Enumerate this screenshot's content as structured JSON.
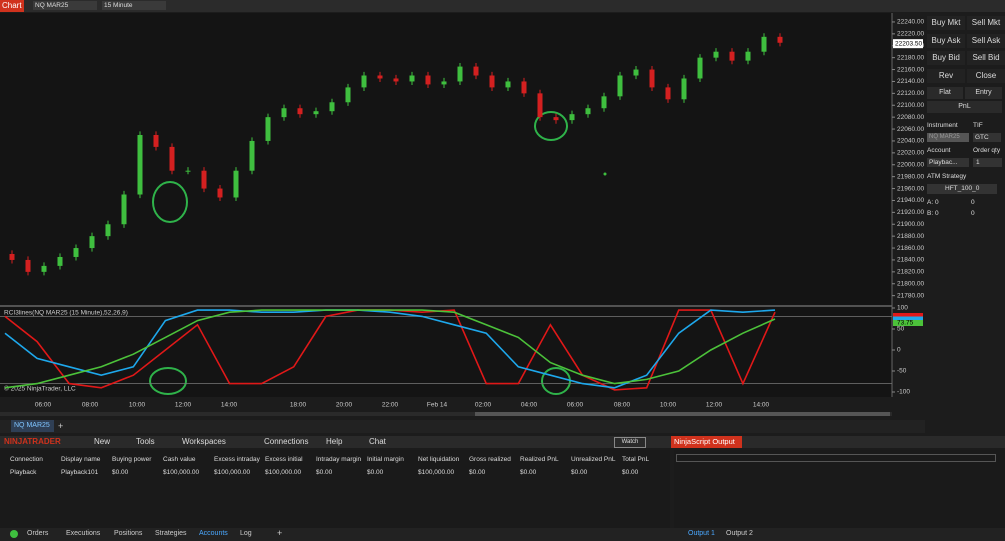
{
  "toolbar": {
    "title": "Chart",
    "instrument": "NQ MAR25",
    "interval": "15 Minute"
  },
  "chart_data": {
    "type": "candlestick",
    "open": [
      21850,
      21840,
      21820,
      21830,
      21845,
      21860,
      21880,
      21900,
      21950,
      22050,
      22030,
      21990,
      21990,
      21960,
      21945,
      21990,
      22040,
      22080,
      22095,
      22085,
      22090,
      22105,
      22130,
      22150,
      22145,
      22140,
      22150,
      22135,
      22140,
      22165,
      22150,
      22130,
      22140,
      22120,
      22080,
      22075,
      22085,
      22095,
      22115,
      22150,
      22160,
      22130,
      22110,
      22145,
      22180,
      22190,
      22175,
      22190,
      22215
    ],
    "high": [
      21856,
      21846,
      21836,
      21851,
      21866,
      21886,
      21906,
      21956,
      22056,
      22056,
      22036,
      21996,
      21996,
      21966,
      21996,
      22046,
      22086,
      22101,
      22101,
      22096,
      22111,
      22136,
      22156,
      22156,
      22151,
      22156,
      22156,
      22146,
      22171,
      22171,
      22156,
      22146,
      22146,
      22126,
      22086,
      22091,
      22101,
      22121,
      22156,
      22166,
      22166,
      22136,
      22151,
      22186,
      22196,
      22196,
      22196,
      22221,
      22221
    ],
    "low": [
      21834,
      21814,
      21814,
      21824,
      21839,
      21854,
      21874,
      21894,
      21944,
      22024,
      21984,
      21984,
      21954,
      21939,
      21939,
      21984,
      22034,
      22074,
      22079,
      22079,
      22084,
      22099,
      22124,
      22139,
      22134,
      22134,
      22129,
      22129,
      22134,
      22144,
      22124,
      22124,
      22114,
      22074,
      22069,
      22069,
      22079,
      22089,
      22109,
      22144,
      22124,
      22104,
      22104,
      22139,
      22174,
      22169,
      22169,
      22184,
      22199
    ],
    "close": [
      21840,
      21820,
      21830,
      21845,
      21860,
      21880,
      21900,
      21950,
      22050,
      22030,
      21990,
      21990,
      21960,
      21945,
      21990,
      22040,
      22080,
      22095,
      22085,
      22090,
      22105,
      22130,
      22150,
      22145,
      22140,
      22150,
      22135,
      22140,
      22165,
      22150,
      22130,
      22140,
      22120,
      22080,
      22075,
      22085,
      22095,
      22115,
      22150,
      22160,
      22130,
      22110,
      22145,
      22180,
      22190,
      22175,
      22190,
      22215,
      22205
    ],
    "up_color": "#3fbf3f",
    "down_color": "#d42020",
    "ylim": [
      21770,
      22250
    ],
    "yticks": [
      {
        "value": 22240,
        "label": "22240.00"
      },
      {
        "value": 22220,
        "label": "22220.00"
      },
      {
        "value": 22200,
        "label": "22200.00"
      },
      {
        "value": 22180,
        "label": "22180.00"
      },
      {
        "value": 22160,
        "label": "22160.00"
      },
      {
        "value": 22140,
        "label": "22140.00"
      },
      {
        "value": 22120,
        "label": "22120.00"
      },
      {
        "value": 22100,
        "label": "22100.00"
      },
      {
        "value": 22080,
        "label": "22080.00"
      },
      {
        "value": 22060,
        "label": "22060.00"
      },
      {
        "value": 22040,
        "label": "22040.00"
      },
      {
        "value": 22020,
        "label": "22020.00"
      },
      {
        "value": 22000,
        "label": "22000.00"
      },
      {
        "value": 21980,
        "label": "21980.00"
      },
      {
        "value": 21960,
        "label": "21960.00"
      },
      {
        "value": 21940,
        "label": "21940.00"
      },
      {
        "value": 21920,
        "label": "21920.00"
      },
      {
        "value": 21900,
        "label": "21900.00"
      },
      {
        "value": 21880,
        "label": "21880.00"
      },
      {
        "value": 21860,
        "label": "21860.00"
      },
      {
        "value": 21840,
        "label": "21840.00"
      },
      {
        "value": 21820,
        "label": "21820.00"
      },
      {
        "value": 21800,
        "label": "21800.00"
      },
      {
        "value": 21780,
        "label": "21780.00"
      }
    ],
    "last_price": {
      "value": 22203.5,
      "label": "22203.50"
    },
    "xlabels": [
      "06:00",
      "08:00",
      "10:00",
      "12:00",
      "14:00",
      "18:00",
      "20:00",
      "22:00",
      "Feb 14",
      "02:00",
      "04:00",
      "06:00",
      "08:00",
      "10:00",
      "12:00",
      "14:00"
    ],
    "copyright": "© 2025 NinjaTrader, LLC"
  },
  "indicator": {
    "type": "line",
    "title": "RCI3lines(NQ MAR25 (15 Minute),52,26,9)",
    "ylim": [
      -100,
      100
    ],
    "yticks": [
      100,
      50,
      0,
      -50,
      -100
    ],
    "levels": [
      80,
      -80
    ],
    "series": [
      {
        "color": "#e01818",
        "values": [
          80,
          20,
          -80,
          -90,
          -60,
          0,
          60,
          -80,
          -80,
          -40,
          80,
          95,
          95,
          90,
          95,
          -80,
          -80,
          60,
          -60,
          -95,
          -90,
          95,
          95,
          -80,
          90
        ]
      },
      {
        "color": "#1ea8ec",
        "values": [
          40,
          -20,
          -40,
          -60,
          -40,
          70,
          95,
          95,
          90,
          90,
          95,
          95,
          90,
          80,
          60,
          40,
          -40,
          -60,
          -80,
          -90,
          -60,
          40,
          95,
          90,
          95
        ]
      },
      {
        "color": "#4cc23a",
        "values": [
          -90,
          -80,
          -60,
          -40,
          -10,
          30,
          70,
          90,
          95,
          95,
          95,
          95,
          95,
          95,
          90,
          60,
          30,
          -30,
          -60,
          -80,
          -70,
          -50,
          0,
          40,
          73.75
        ]
      }
    ]
  },
  "order_entry": {
    "buttons": [
      "Buy Mkt",
      "Sell Mkt",
      "Buy Ask",
      "Sell Ask",
      "Buy Bid",
      "Sell Bid",
      "Rev",
      "Close"
    ],
    "flat": "Flat",
    "entry": "Entry",
    "pnl": "PnL",
    "instrument_label": "Instrument",
    "tif_label": "TIF",
    "instrument": "NQ MAR25",
    "tif": "GTC",
    "account_label": "Account",
    "qty_label": "Order qty",
    "account": "Playbac...",
    "qty": 1,
    "atm_label": "ATM Strategy",
    "atm": "HFT_100_0",
    "a_label": "A:",
    "a_values": [
      0,
      0
    ],
    "b_label": "B:",
    "b_values": [
      0,
      0
    ]
  },
  "tabs": [
    "NQ MAR25"
  ],
  "control_center": {
    "brand": "NINJATRADER",
    "menu": [
      "New",
      "Tools",
      "Workspaces",
      "Connections",
      "Help",
      "Chat"
    ],
    "watch": "Watch",
    "output_title": "NinjaScript Output",
    "table": {
      "columns": [
        "Connection",
        "Display name",
        "Buying power",
        "Cash value",
        "Excess intraday",
        "Excess initial",
        "Intraday margin",
        "Initial margin",
        "Net liquidation",
        "Gross realized",
        "Realized PnL",
        "Unrealized PnL",
        "Total PnL"
      ],
      "rows": [
        [
          "Playback",
          "Playback101",
          "$0.00",
          "$100,000.00",
          "$100,000.00",
          "$100,000.00",
          "$0.00",
          "$0.00",
          "$100,000.00",
          "$0.00",
          "$0.00",
          "$0.00",
          "$0.00"
        ]
      ]
    },
    "bottom_tabs": [
      "Orders",
      "Executions",
      "Positions",
      "Strategies",
      "Accounts",
      "Log"
    ],
    "output_tabs": [
      "Output 1",
      "Output 2"
    ]
  }
}
